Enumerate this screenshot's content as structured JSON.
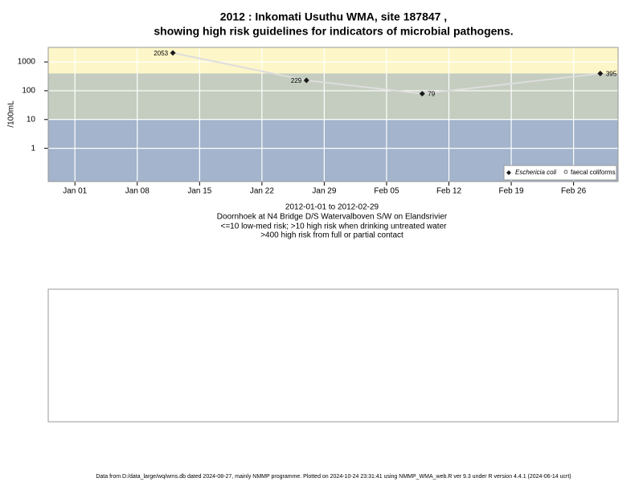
{
  "chart_data": {
    "type": "line",
    "title": [
      "2012 : Inkomati Usuthu WMA, site 187847 ,",
      "showing high risk guidelines for indicators of microbial pathogens."
    ],
    "subtitle": [
      "2012-01-01 to 2012-02-29",
      "Doornhoek at N4 Bridge D/S Watervalboven S/W on Elandsrivier",
      "<=10 low-med risk; >10 high risk when drinking untreated water",
      ">400 high risk from full or partial contact"
    ],
    "y_label": "/100mL",
    "x": [
      "2012-01-12",
      "2012-01-27",
      "2012-02-09",
      "2012-02-29"
    ],
    "series": [
      {
        "name": "Eschericia coli",
        "color": "#1a1a1a",
        "values": [
          2053,
          229,
          79,
          395
        ]
      },
      {
        "name": "faecal coliforms",
        "color": "#1a1a1a",
        "values": [
          null,
          null,
          null,
          null
        ]
      }
    ],
    "line_color": "#dddddd",
    "xlim": [
      "2011-12-29",
      "2012-03-02"
    ],
    "xticks": [
      {
        "value": "2012-01-01",
        "label": "Jan 01"
      },
      {
        "value": "2012-01-08",
        "label": "Jan 08"
      },
      {
        "value": "2012-01-15",
        "label": "Jan 15"
      },
      {
        "value": "2012-01-22",
        "label": "Jan 22"
      },
      {
        "value": "2012-01-29",
        "label": "Jan 29"
      },
      {
        "value": "2012-02-05",
        "label": "Feb 05"
      },
      {
        "value": "2012-02-12",
        "label": "Feb 12"
      },
      {
        "value": "2012-02-19",
        "label": "Feb 19"
      },
      {
        "value": "2012-02-26",
        "label": "Feb 26"
      }
    ],
    "ylim": [
      0.07,
      3200
    ],
    "yticks": [
      1,
      10,
      100,
      1000
    ],
    "log_y": true,
    "grid": true,
    "thresholds": [
      10,
      400
    ],
    "band_colors": [
      "#a3b4cc",
      "#c4cdbf",
      "#fdf6c8"
    ],
    "legend": "bottom-right",
    "footer": "Data from D:/data_large/wq/wms.db dated 2024-08-27, mainly NMMP programme. Plotted on 2024-10-24 23:31:41 using NMMP_WMA_web.R ver 9.3 under R version 4.4.1 (2024-06-14 ucrt)"
  }
}
